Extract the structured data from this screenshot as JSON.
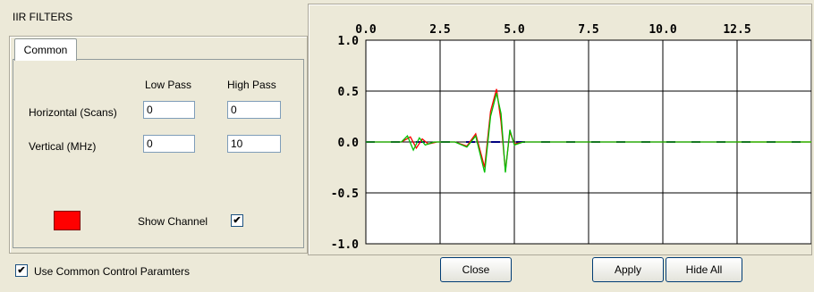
{
  "window": {
    "title": "IIR FILTERS"
  },
  "tabs": [
    {
      "label": "Common"
    }
  ],
  "columns": {
    "low_pass": "Low Pass",
    "high_pass": "High Pass"
  },
  "rows": {
    "horizontal": {
      "label": "Horizontal  (Scans)",
      "low": "0",
      "high": "0"
    },
    "vertical": {
      "label": "Vertical (MHz)",
      "low": "0",
      "high": "10"
    }
  },
  "channel": {
    "color": "#ff0000",
    "show_label": "Show Channel",
    "show_checked": true
  },
  "common_control": {
    "label": "Use Common Control Paramters",
    "checked": true
  },
  "buttons": {
    "close": "Close",
    "apply": "Apply",
    "hide_all": "Hide All"
  },
  "check_mark": "✔",
  "chart_data": {
    "type": "line",
    "x_tick_labels": [
      "0.0",
      "2.5",
      "5.0",
      "7.5",
      "10.0",
      "12.5"
    ],
    "x_ticks": [
      0,
      2.5,
      5.0,
      7.5,
      10.0,
      12.5
    ],
    "y_tick_labels": [
      "1.0",
      "0.5",
      "0.0",
      "-0.5",
      "-1.0"
    ],
    "y_ticks": [
      1.0,
      0.5,
      0.0,
      -0.5,
      -1.0
    ],
    "xlim": [
      0,
      15
    ],
    "ylim": [
      -1.0,
      1.0
    ],
    "grid": true,
    "series": [
      {
        "color": "#ff0000",
        "x": [
          0,
          1.2,
          1.5,
          1.7,
          1.9,
          2.1,
          2.4,
          3.0,
          3.4,
          3.7,
          4.0,
          4.2,
          4.4,
          4.55,
          4.7,
          4.85,
          5.0,
          5.3,
          6,
          8,
          10,
          12.5,
          15
        ],
        "y": [
          0,
          0,
          0.05,
          -0.06,
          0.03,
          -0.02,
          0,
          0,
          -0.04,
          0.08,
          -0.25,
          0.3,
          0.52,
          0.2,
          -0.28,
          0.1,
          -0.02,
          0,
          0,
          0,
          0,
          0,
          0
        ]
      },
      {
        "color": "#00c000",
        "x": [
          0,
          1.2,
          1.4,
          1.6,
          1.8,
          2.0,
          2.3,
          3.0,
          3.4,
          3.7,
          4.0,
          4.2,
          4.4,
          4.55,
          4.7,
          4.85,
          5.0,
          5.3,
          6,
          8,
          10,
          12.5,
          15
        ],
        "y": [
          0,
          0,
          0.06,
          -0.08,
          0.04,
          -0.03,
          0,
          0,
          -0.05,
          0.06,
          -0.3,
          0.25,
          0.48,
          0.28,
          -0.3,
          0.12,
          -0.03,
          0,
          0,
          0,
          0,
          0,
          0
        ]
      },
      {
        "color": "#000080",
        "x": [
          0,
          15
        ],
        "y": [
          0,
          0
        ]
      },
      {
        "color": "#ffff00",
        "x": [
          12.5,
          15
        ],
        "y": [
          0,
          0
        ]
      }
    ]
  }
}
